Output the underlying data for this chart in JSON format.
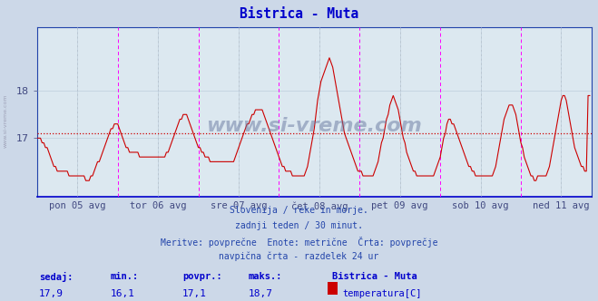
{
  "title": "Bistrica - Muta",
  "title_color": "#0000cc",
  "bg_color": "#ccd8e8",
  "plot_bg_color": "#dce8f0",
  "line_color": "#cc0000",
  "avg_line_color": "#cc0000",
  "avg_line_value": 17.1,
  "y_axis_min": 15.75,
  "y_axis_max": 19.35,
  "y_ticks": [
    17,
    18
  ],
  "grid_color": "#b8c8d8",
  "vline_magenta": "#ff00ff",
  "vline_gray": "#888888",
  "tick_label_color": "#404880",
  "text_color": "#2244aa",
  "watermark": "www.si-vreme.com",
  "sidebar_text": "www.si-vreme.com",
  "subtitle_lines": [
    "Slovenija / reke in morje.",
    "zadnji teden / 30 minut.",
    "Meritve: povprečne  Enote: metrične  Črta: povprečje",
    "navpična črta - razdelek 24 ur"
  ],
  "footer_labels": [
    "sedaj:",
    "min.:",
    "povpr.:",
    "maks.:"
  ],
  "footer_values": [
    "17,9",
    "16,1",
    "17,1",
    "18,7"
  ],
  "footer_station": "Bistrica - Muta",
  "footer_series": "temperatura[C]",
  "footer_color": "#0000cc",
  "x_tick_labels": [
    "pon 05 avg",
    "tor 06 avg",
    "sre 07 avg",
    "čet 08 avg",
    "pet 09 avg",
    "sob 10 avg",
    "ned 11 avg"
  ],
  "temperature_data": [
    17.0,
    17.0,
    17.0,
    16.9,
    16.9,
    16.8,
    16.8,
    16.7,
    16.6,
    16.5,
    16.4,
    16.4,
    16.3,
    16.3,
    16.3,
    16.3,
    16.3,
    16.3,
    16.3,
    16.2,
    16.2,
    16.2,
    16.2,
    16.2,
    16.2,
    16.2,
    16.2,
    16.2,
    16.2,
    16.1,
    16.1,
    16.1,
    16.2,
    16.2,
    16.3,
    16.4,
    16.5,
    16.5,
    16.6,
    16.7,
    16.8,
    16.9,
    17.0,
    17.1,
    17.2,
    17.2,
    17.3,
    17.3,
    17.3,
    17.2,
    17.1,
    17.0,
    16.9,
    16.8,
    16.8,
    16.7,
    16.7,
    16.7,
    16.7,
    16.7,
    16.7,
    16.6,
    16.6,
    16.6,
    16.6,
    16.6,
    16.6,
    16.6,
    16.6,
    16.6,
    16.6,
    16.6,
    16.6,
    16.6,
    16.6,
    16.6,
    16.6,
    16.7,
    16.7,
    16.8,
    16.9,
    17.0,
    17.1,
    17.2,
    17.3,
    17.4,
    17.4,
    17.5,
    17.5,
    17.5,
    17.4,
    17.3,
    17.2,
    17.1,
    17.0,
    16.9,
    16.8,
    16.8,
    16.7,
    16.7,
    16.6,
    16.6,
    16.6,
    16.5,
    16.5,
    16.5,
    16.5,
    16.5,
    16.5,
    16.5,
    16.5,
    16.5,
    16.5,
    16.5,
    16.5,
    16.5,
    16.5,
    16.5,
    16.6,
    16.7,
    16.8,
    16.9,
    17.0,
    17.1,
    17.2,
    17.3,
    17.3,
    17.4,
    17.5,
    17.5,
    17.6,
    17.6,
    17.6,
    17.6,
    17.6,
    17.5,
    17.4,
    17.3,
    17.2,
    17.1,
    17.0,
    16.9,
    16.8,
    16.7,
    16.6,
    16.5,
    16.4,
    16.4,
    16.3,
    16.3,
    16.3,
    16.3,
    16.2,
    16.2,
    16.2,
    16.2,
    16.2,
    16.2,
    16.2,
    16.2,
    16.3,
    16.4,
    16.6,
    16.8,
    17.0,
    17.2,
    17.5,
    17.8,
    18.0,
    18.2,
    18.3,
    18.4,
    18.5,
    18.6,
    18.7,
    18.6,
    18.5,
    18.3,
    18.1,
    17.9,
    17.7,
    17.5,
    17.3,
    17.1,
    17.0,
    16.9,
    16.8,
    16.7,
    16.6,
    16.5,
    16.4,
    16.3,
    16.3,
    16.3,
    16.2,
    16.2,
    16.2,
    16.2,
    16.2,
    16.2,
    16.2,
    16.3,
    16.4,
    16.5,
    16.7,
    16.9,
    17.0,
    17.2,
    17.4,
    17.5,
    17.7,
    17.8,
    17.9,
    17.8,
    17.7,
    17.6,
    17.4,
    17.2,
    17.0,
    16.9,
    16.7,
    16.6,
    16.5,
    16.4,
    16.3,
    16.3,
    16.2,
    16.2,
    16.2,
    16.2,
    16.2,
    16.2,
    16.2,
    16.2,
    16.2,
    16.2,
    16.2,
    16.3,
    16.4,
    16.5,
    16.6,
    16.8,
    17.0,
    17.1,
    17.3,
    17.4,
    17.4,
    17.3,
    17.3,
    17.2,
    17.1,
    17.0,
    16.9,
    16.8,
    16.7,
    16.6,
    16.5,
    16.4,
    16.4,
    16.3,
    16.3,
    16.2,
    16.2,
    16.2,
    16.2,
    16.2,
    16.2,
    16.2,
    16.2,
    16.2,
    16.2,
    16.2,
    16.3,
    16.4,
    16.6,
    16.8,
    17.0,
    17.2,
    17.4,
    17.5,
    17.6,
    17.7,
    17.7,
    17.7,
    17.6,
    17.5,
    17.3,
    17.1,
    16.9,
    16.8,
    16.6,
    16.5,
    16.4,
    16.3,
    16.2,
    16.2,
    16.1,
    16.1,
    16.2,
    16.2,
    16.2,
    16.2,
    16.2,
    16.2,
    16.3,
    16.4,
    16.6,
    16.8,
    17.0,
    17.2,
    17.4,
    17.6,
    17.8,
    17.9,
    17.9,
    17.8,
    17.6,
    17.4,
    17.2,
    17.0,
    16.8,
    16.7,
    16.6,
    16.5,
    16.4,
    16.4,
    16.3,
    16.3,
    17.9,
    17.9
  ]
}
